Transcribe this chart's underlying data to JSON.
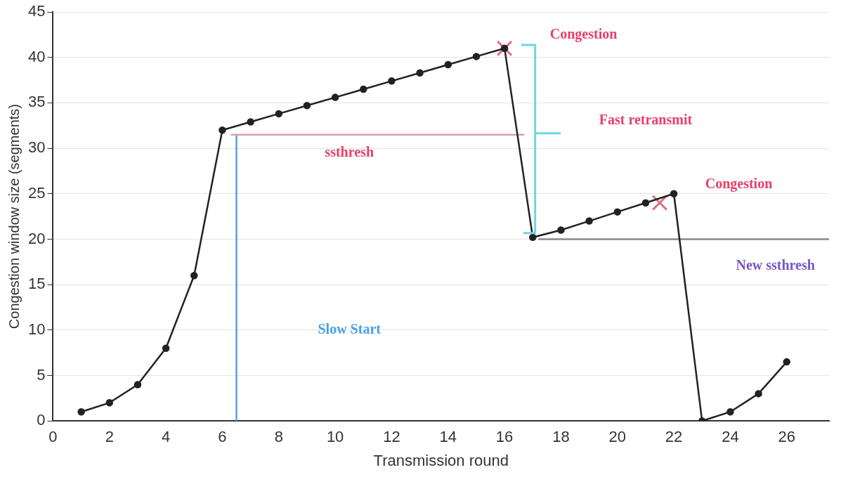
{
  "chart_data": {
    "type": "line",
    "xlabel": "Transmission round",
    "ylabel": "Congestion window size (segments)",
    "xlim": [
      0,
      27.5
    ],
    "xticks": [
      0,
      2,
      4,
      6,
      8,
      10,
      12,
      14,
      16,
      18,
      20,
      22,
      24,
      26
    ],
    "ylim": [
      0,
      45
    ],
    "yticks": [
      0,
      5,
      10,
      15,
      20,
      25,
      30,
      35,
      40,
      45
    ],
    "grid": "y",
    "series": [
      {
        "color": "#222222",
        "marker": "circle",
        "x": [
          1,
          2,
          3,
          4,
          5,
          6,
          7,
          8,
          9,
          10,
          11,
          12,
          13,
          14,
          15,
          16,
          17,
          18,
          19,
          20,
          21,
          22,
          23,
          24,
          25,
          26
        ],
        "values": [
          1,
          2,
          4,
          8,
          16,
          32,
          32.9,
          33.8,
          34.7,
          35.6,
          36.5,
          37.4,
          38.3,
          39.2,
          40.1,
          41,
          20.2,
          21,
          22,
          23,
          24,
          25,
          0,
          1,
          3,
          6.5
        ]
      },
      {
        "type": "scatter",
        "color": "#e07080",
        "marker": "cross",
        "x": [
          16,
          21.5
        ],
        "values": [
          41,
          24
        ]
      },
      {
        "type": "line",
        "color": "#d8a0b0",
        "marker": "none",
        "x": [
          6.3,
          16.7
        ],
        "values": [
          31.5,
          31.5
        ]
      },
      {
        "type": "line",
        "color": "#5aa0e0",
        "marker": "none",
        "x": [
          6.5,
          6.5
        ],
        "values": [
          0,
          31.5
        ]
      },
      {
        "type": "line",
        "color": "#888888",
        "marker": "none",
        "x": [
          17.2,
          27.5
        ],
        "values": [
          20,
          20
        ]
      }
    ],
    "annotations": [
      "Congestion",
      "Fast retransmit",
      "ssthresh",
      "Congestion",
      "New ssthresh",
      "Slow Start"
    ]
  }
}
